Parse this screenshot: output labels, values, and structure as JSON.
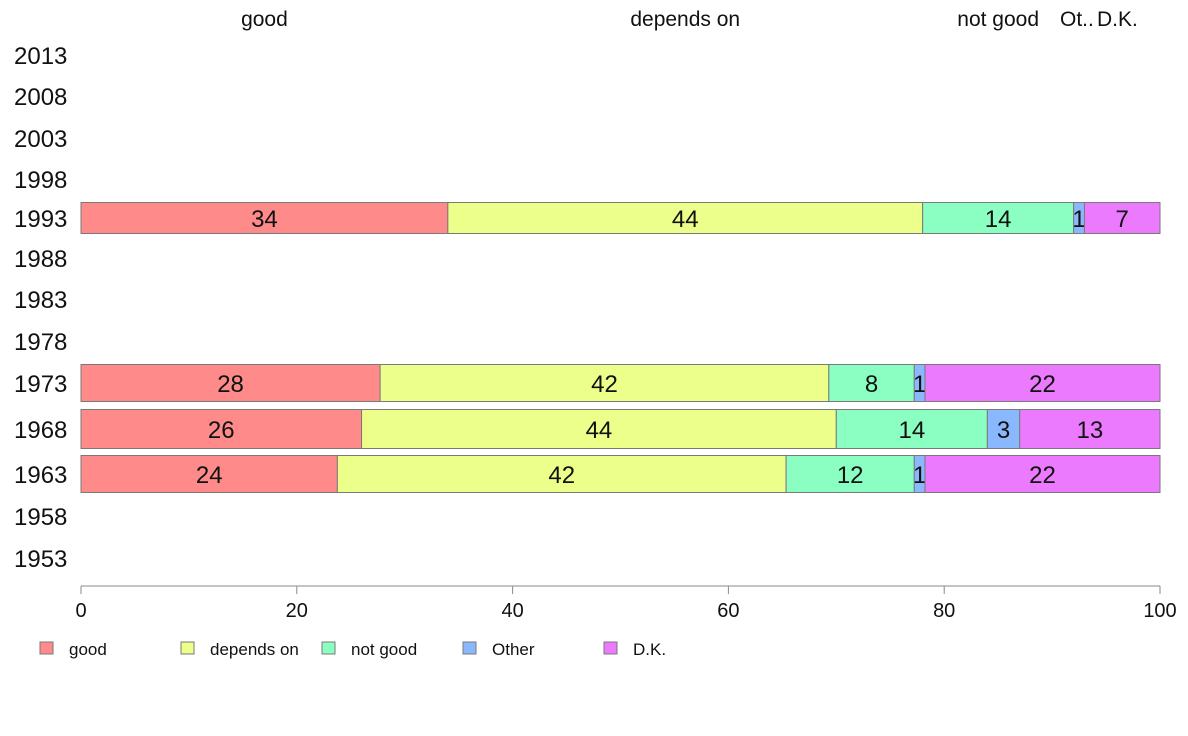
{
  "chart_data": {
    "type": "bar",
    "orientation": "horizontal",
    "stacked": true,
    "title": "",
    "xlabel": "",
    "ylabel": "",
    "xlim": [
      0,
      100
    ],
    "x_ticks": [
      "0",
      "20",
      "40",
      "60",
      "80",
      "100"
    ],
    "categories": [
      "2013",
      "2008",
      "2003",
      "1998",
      "1993",
      "1988",
      "1983",
      "1978",
      "1973",
      "1968",
      "1963",
      "1958",
      "1953"
    ],
    "series": [
      {
        "name": "good",
        "color": "#ff8a8a",
        "values": [
          null,
          null,
          null,
          null,
          34,
          null,
          null,
          null,
          28,
          26,
          24,
          null,
          null
        ]
      },
      {
        "name": "depends on",
        "color": "#ebff8a",
        "values": [
          null,
          null,
          null,
          null,
          44,
          null,
          null,
          null,
          42,
          44,
          42,
          null,
          null
        ]
      },
      {
        "name": "not good",
        "color": "#8affc1",
        "values": [
          null,
          null,
          null,
          null,
          14,
          null,
          null,
          null,
          8,
          14,
          12,
          null,
          null
        ]
      },
      {
        "name": "Other",
        "color": "#8ab8ff",
        "values": [
          null,
          null,
          null,
          null,
          1,
          null,
          null,
          null,
          1,
          3,
          1,
          null,
          null
        ]
      },
      {
        "name": "D.K.",
        "color": "#eb7aff",
        "values": [
          null,
          null,
          null,
          null,
          7,
          null,
          null,
          null,
          22,
          13,
          22,
          null,
          null
        ]
      }
    ],
    "column_headers": [
      "good",
      "depends on",
      "not good",
      "Ot..",
      "D.K."
    ],
    "legend_position": "bottom-left",
    "grid": false
  }
}
